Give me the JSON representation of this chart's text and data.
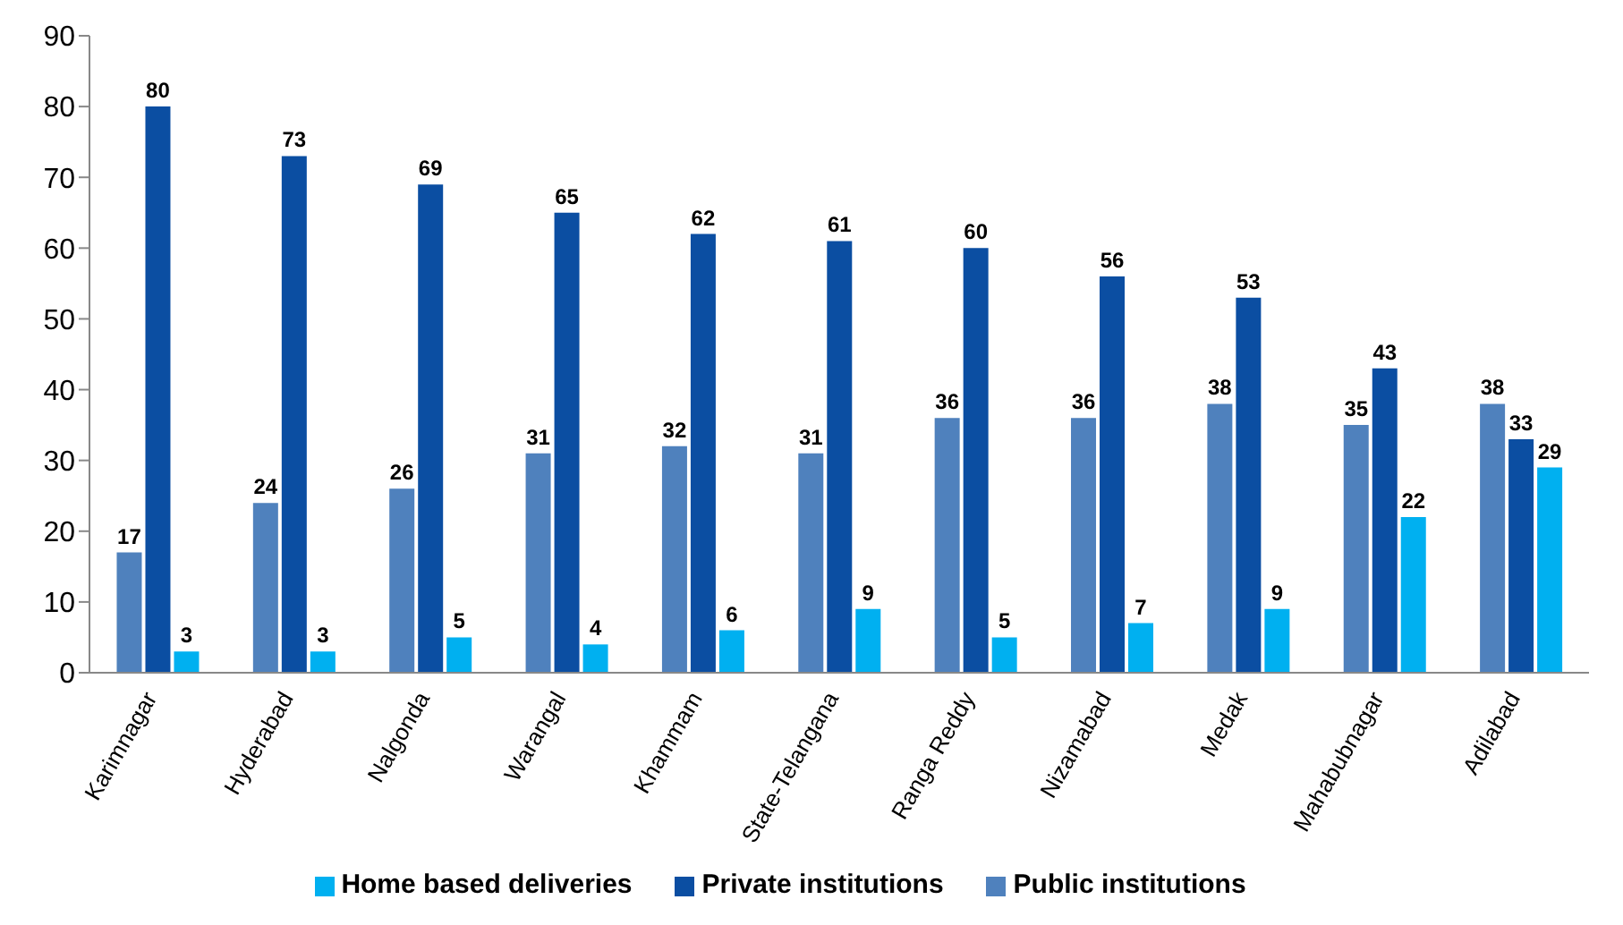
{
  "chart_data": {
    "type": "bar",
    "categories": [
      "Karimnagar",
      "Hyderabad",
      "Nalgonda",
      "Warangal",
      "Khammam",
      "State-Telangana",
      "Ranga Reddy",
      "Nizamabad",
      "Medak",
      "Mahabubnagar",
      "Adilabad"
    ],
    "series": [
      {
        "name": "Public institutions",
        "color": "#4f81bd",
        "values": [
          17,
          24,
          26,
          31,
          32,
          31,
          36,
          36,
          38,
          35,
          38
        ]
      },
      {
        "name": "Private institutions",
        "color": "#0b4ea2",
        "values": [
          80,
          73,
          69,
          65,
          62,
          61,
          60,
          56,
          53,
          43,
          33
        ]
      },
      {
        "name": "Home based deliveries",
        "color": "#00b0f0",
        "values": [
          3,
          3,
          5,
          4,
          6,
          9,
          5,
          7,
          9,
          22,
          29
        ]
      }
    ],
    "ylim": [
      0,
      90
    ],
    "yticks": [
      0,
      10,
      20,
      30,
      40,
      50,
      60,
      70,
      80,
      90
    ],
    "grid": false,
    "legend": "bottom",
    "data_labels": true
  }
}
